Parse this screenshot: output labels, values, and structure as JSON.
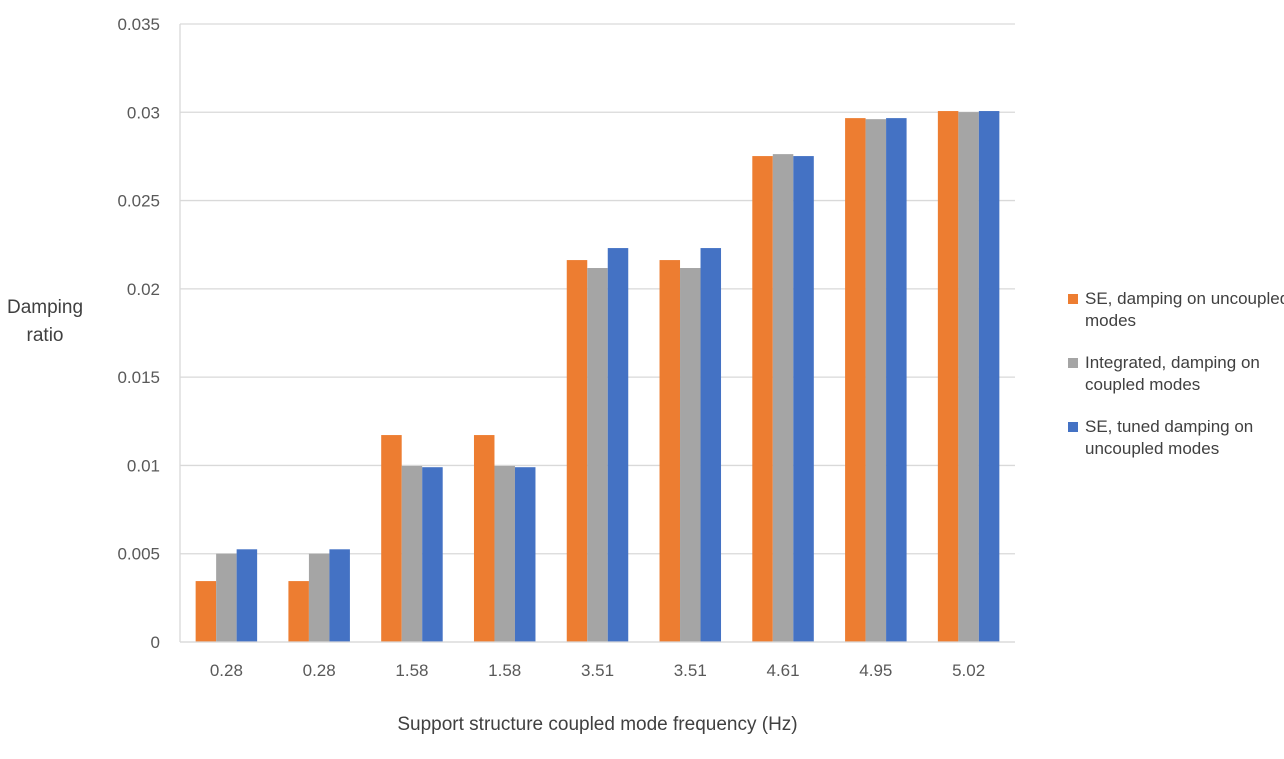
{
  "chart_data": {
    "type": "bar",
    "xlabel": "Support structure coupled mode frequency (Hz)",
    "ylabel": "Damping ratio",
    "categories": [
      "0.28",
      "0.28",
      "1.58",
      "1.58",
      "3.51",
      "3.51",
      "4.61",
      "4.95",
      "5.02"
    ],
    "ylim": [
      0,
      0.035
    ],
    "yticks": [
      "0",
      "0.005",
      "0.01",
      "0.015",
      "0.02",
      "0.025",
      "0.03",
      "0.035"
    ],
    "grid": true,
    "legend_position": "right",
    "series": [
      {
        "name": "SE, damping on uncoupled modes",
        "color": "#ED7D31",
        "values": [
          0.00345,
          0.00345,
          0.01172,
          0.01172,
          0.02163,
          0.02163,
          0.02752,
          0.02967,
          0.03007
        ]
      },
      {
        "name": "Integrated, damping on coupled modes",
        "color": "#A5A5A5",
        "values": [
          0.005,
          0.005,
          0.00997,
          0.00997,
          0.02118,
          0.02118,
          0.02763,
          0.02961,
          0.03001
        ]
      },
      {
        "name": "SE, tuned damping on uncoupled modes",
        "color": "#4472C4",
        "values": [
          0.00525,
          0.00525,
          0.0099,
          0.0099,
          0.02231,
          0.02231,
          0.02752,
          0.02967,
          0.03007
        ]
      }
    ]
  }
}
